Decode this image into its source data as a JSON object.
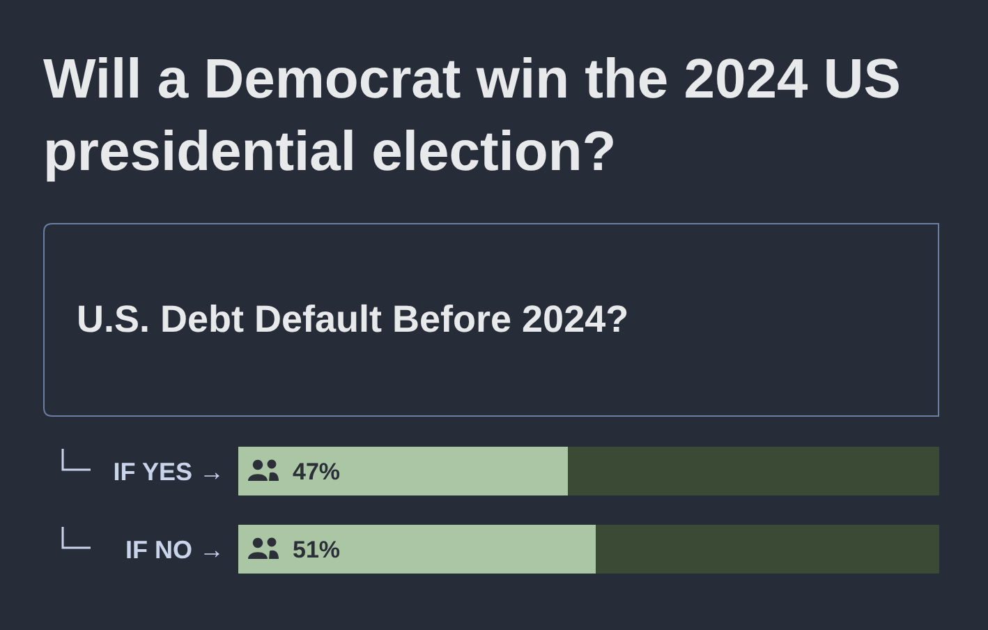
{
  "chart_data": {
    "type": "bar",
    "title": "Will a Democrat win the 2024 US presidential election?",
    "subtitle": "U.S. Debt Default Before 2024?",
    "orientation": "horizontal",
    "stacked": true,
    "categories": [
      "IF YES →",
      "IF NO →"
    ],
    "series": [
      {
        "color": "#abc6a4",
        "values": [
          47,
          51
        ],
        "value_labels": [
          "47%",
          "51%"
        ]
      },
      {
        "color": "#3a4a35",
        "values": [
          53,
          49
        ]
      }
    ],
    "xlim": [
      0,
      100
    ],
    "tick_labels": "y"
  }
}
